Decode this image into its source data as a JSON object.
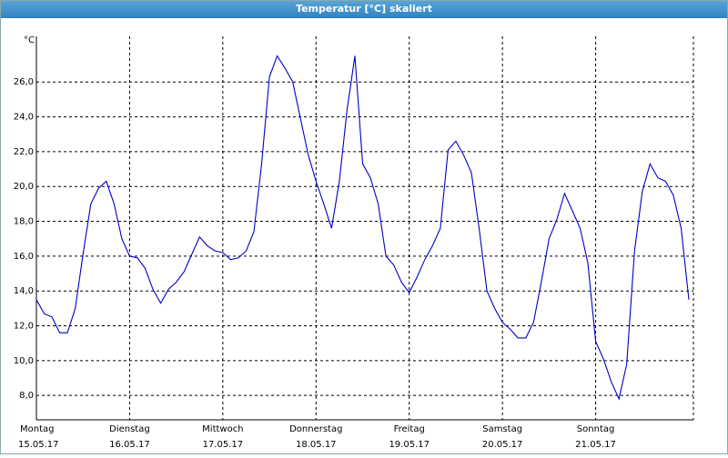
{
  "chart_data": {
    "type": "line",
    "title": "Temperatur [°C] skaliert",
    "y_label": "°C",
    "days": [
      {
        "day": "Montag",
        "date": "15.05.17"
      },
      {
        "day": "Dienstag",
        "date": "16.05.17"
      },
      {
        "day": "Mittwoch",
        "date": "17.05.17"
      },
      {
        "day": "Donnerstag",
        "date": "18.05.17"
      },
      {
        "day": "Freitag",
        "date": "19.05.17"
      },
      {
        "day": "Samstag",
        "date": "20.05.17"
      },
      {
        "day": "Sonntag",
        "date": "21.05.17"
      }
    ],
    "series": [
      {
        "color": "#0000c8",
        "values": [
          13.5,
          12.7,
          12.5,
          11.6,
          11.6,
          13.0,
          16.1,
          19.0,
          19.9,
          20.3,
          19.0,
          17.0,
          16.0,
          15.9,
          15.3,
          14.1,
          13.3,
          14.1,
          14.5,
          15.1,
          16.1,
          17.1,
          16.6,
          16.3,
          16.2,
          15.8,
          15.9,
          16.3,
          17.4,
          21.3,
          26.3,
          27.5,
          26.8,
          26.0,
          23.9,
          21.8,
          20.3,
          19.0,
          17.6,
          20.3,
          24.4,
          27.5,
          21.3,
          20.5,
          19.0,
          16.0,
          15.5,
          14.5,
          13.9,
          14.8,
          15.8,
          16.6,
          17.6,
          22.1,
          22.6,
          21.8,
          20.8,
          17.6,
          14.0,
          13.0,
          12.2,
          11.8,
          11.3,
          11.3,
          12.2,
          14.5,
          17.0,
          18.1,
          19.6,
          18.6,
          17.6,
          15.6,
          11.1,
          10.1,
          8.8,
          7.8,
          9.8,
          16.3,
          19.7,
          21.3,
          20.5,
          20.3,
          19.5,
          17.6,
          13.5
        ]
      }
    ],
    "ylim": [
      6.6,
      28.1
    ],
    "yticks": [
      {
        "value": 8,
        "label": "8,0"
      },
      {
        "value": 10,
        "label": "10,0"
      },
      {
        "value": 12,
        "label": "12,0"
      },
      {
        "value": 14,
        "label": "14,0"
      },
      {
        "value": 16,
        "label": "16,0"
      },
      {
        "value": 18,
        "label": "18,0"
      },
      {
        "value": 20,
        "label": "20,0"
      },
      {
        "value": 22,
        "label": "22,0"
      },
      {
        "value": 24,
        "label": "24,0"
      },
      {
        "value": 26,
        "label": "26,0"
      }
    ],
    "grid": true
  }
}
